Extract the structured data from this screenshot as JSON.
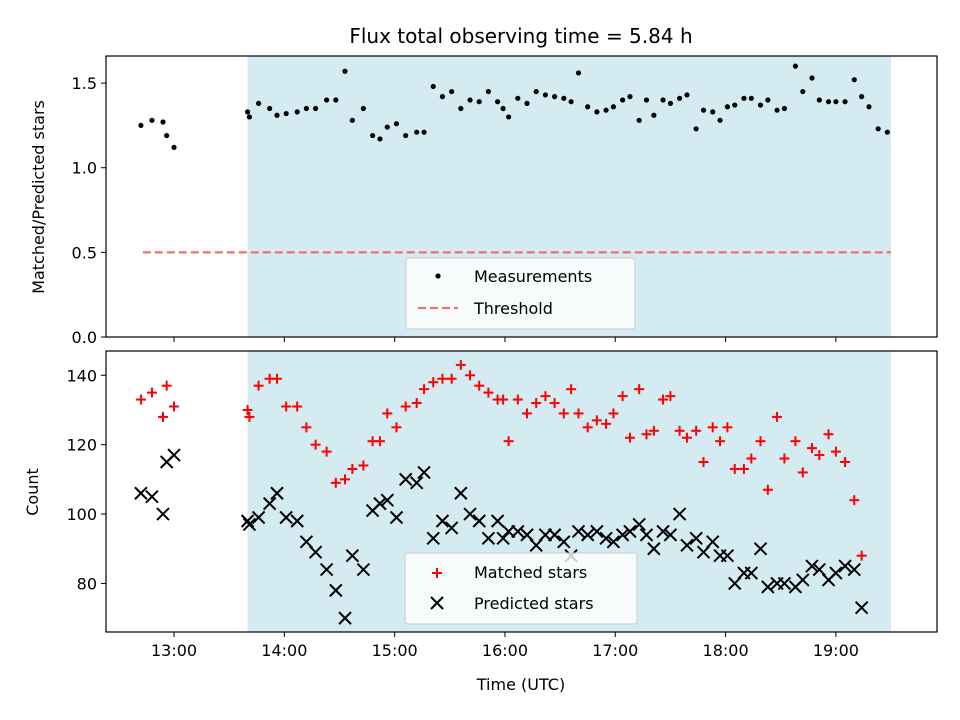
{
  "chart_data": [
    {
      "type": "scatter",
      "title": "Flux total observing time = 5.84 h",
      "ylabel": "Matched/Predicted stars",
      "xlabel": "",
      "xlim": [
        "12:23",
        "19:55"
      ],
      "ylim": [
        0,
        1.66
      ],
      "yticks": [
        0.0,
        0.5,
        1.0,
        1.5
      ],
      "ytick_labels": [
        "0.0",
        "0.5",
        "1.0",
        "1.5"
      ],
      "grid": false,
      "legend_position": "bottom-center",
      "shaded_region": {
        "from": "13:40",
        "to": "19:30",
        "color": "#d4ebf1"
      },
      "threshold": {
        "name": "Threshold",
        "value": 0.5,
        "from": "12:43",
        "to": "19:30",
        "color": "#f07070",
        "style": "dashed"
      },
      "series": [
        {
          "name": "Measurements",
          "marker": "dot",
          "color": "#000000",
          "points": [
            [
              "12:42",
              1.25
            ],
            [
              "12:48",
              1.28
            ],
            [
              "12:54",
              1.27
            ],
            [
              "12:56",
              1.19
            ],
            [
              "13:00",
              1.12
            ],
            [
              "13:40",
              1.33
            ],
            [
              "13:41",
              1.3
            ],
            [
              "13:46",
              1.38
            ],
            [
              "13:52",
              1.35
            ],
            [
              "13:56",
              1.31
            ],
            [
              "14:01",
              1.32
            ],
            [
              "14:07",
              1.33
            ],
            [
              "14:12",
              1.35
            ],
            [
              "14:17",
              1.35
            ],
            [
              "14:23",
              1.4
            ],
            [
              "14:28",
              1.4
            ],
            [
              "14:33",
              1.57
            ],
            [
              "14:37",
              1.28
            ],
            [
              "14:43",
              1.35
            ],
            [
              "14:48",
              1.19
            ],
            [
              "14:52",
              1.17
            ],
            [
              "14:56",
              1.24
            ],
            [
              "15:01",
              1.26
            ],
            [
              "15:06",
              1.19
            ],
            [
              "15:12",
              1.21
            ],
            [
              "15:16",
              1.21
            ],
            [
              "15:21",
              1.48
            ],
            [
              "15:26",
              1.42
            ],
            [
              "15:31",
              1.45
            ],
            [
              "15:36",
              1.35
            ],
            [
              "15:41",
              1.4
            ],
            [
              "15:46",
              1.39
            ],
            [
              "15:51",
              1.45
            ],
            [
              "15:56",
              1.39
            ],
            [
              "15:59",
              1.35
            ],
            [
              "16:02",
              1.3
            ],
            [
              "16:07",
              1.41
            ],
            [
              "16:12",
              1.38
            ],
            [
              "16:17",
              1.45
            ],
            [
              "16:22",
              1.43
            ],
            [
              "16:27",
              1.42
            ],
            [
              "16:32",
              1.41
            ],
            [
              "16:36",
              1.39
            ],
            [
              "16:40",
              1.56
            ],
            [
              "16:45",
              1.36
            ],
            [
              "16:50",
              1.33
            ],
            [
              "16:55",
              1.34
            ],
            [
              "16:59",
              1.36
            ],
            [
              "17:04",
              1.4
            ],
            [
              "17:08",
              1.42
            ],
            [
              "17:13",
              1.28
            ],
            [
              "17:17",
              1.4
            ],
            [
              "17:21",
              1.31
            ],
            [
              "17:26",
              1.4
            ],
            [
              "17:30",
              1.38
            ],
            [
              "17:35",
              1.41
            ],
            [
              "17:39",
              1.43
            ],
            [
              "17:44",
              1.23
            ],
            [
              "17:48",
              1.34
            ],
            [
              "17:53",
              1.33
            ],
            [
              "17:57",
              1.28
            ],
            [
              "18:01",
              1.36
            ],
            [
              "18:05",
              1.37
            ],
            [
              "18:10",
              1.41
            ],
            [
              "18:14",
              1.41
            ],
            [
              "18:19",
              1.37
            ],
            [
              "18:23",
              1.4
            ],
            [
              "18:28",
              1.34
            ],
            [
              "18:32",
              1.35
            ],
            [
              "18:38",
              1.6
            ],
            [
              "18:42",
              1.45
            ],
            [
              "18:47",
              1.53
            ],
            [
              "18:51",
              1.4
            ],
            [
              "18:56",
              1.39
            ],
            [
              "19:00",
              1.39
            ],
            [
              "19:05",
              1.39
            ],
            [
              "19:10",
              1.52
            ],
            [
              "19:14",
              1.42
            ],
            [
              "19:18",
              1.36
            ],
            [
              "19:23",
              1.23
            ],
            [
              "19:28",
              1.21
            ]
          ]
        }
      ]
    },
    {
      "type": "scatter",
      "title": "",
      "ylabel": "Count",
      "xlabel": "Time (UTC)",
      "xlim": [
        "12:23",
        "19:55"
      ],
      "ylim": [
        66,
        147
      ],
      "yticks": [
        80,
        100,
        120,
        140
      ],
      "ytick_labels": [
        "80",
        "100",
        "120",
        "140"
      ],
      "xticks": [
        "13:00",
        "14:00",
        "15:00",
        "16:00",
        "17:00",
        "18:00",
        "19:00"
      ],
      "xtick_labels": [
        "13:00",
        "14:00",
        "15:00",
        "16:00",
        "17:00",
        "18:00",
        "19:00"
      ],
      "grid": false,
      "legend_position": "bottom-center",
      "shaded_region": {
        "from": "13:40",
        "to": "19:30",
        "color": "#d4ebf1"
      },
      "series": [
        {
          "name": "Matched stars",
          "marker": "plus",
          "color": "#ff0000",
          "points": [
            [
              "12:42",
              133
            ],
            [
              "12:48",
              135
            ],
            [
              "12:54",
              128
            ],
            [
              "12:56",
              137
            ],
            [
              "13:00",
              131
            ],
            [
              "13:40",
              130
            ],
            [
              "13:41",
              128
            ],
            [
              "13:46",
              137
            ],
            [
              "13:52",
              139
            ],
            [
              "13:56",
              139
            ],
            [
              "14:01",
              131
            ],
            [
              "14:07",
              131
            ],
            [
              "14:12",
              125
            ],
            [
              "14:17",
              120
            ],
            [
              "14:23",
              118
            ],
            [
              "14:28",
              109
            ],
            [
              "14:33",
              110
            ],
            [
              "14:37",
              113
            ],
            [
              "14:43",
              114
            ],
            [
              "14:48",
              121
            ],
            [
              "14:52",
              121
            ],
            [
              "14:56",
              129
            ],
            [
              "15:01",
              125
            ],
            [
              "15:06",
              131
            ],
            [
              "15:12",
              132
            ],
            [
              "15:16",
              136
            ],
            [
              "15:21",
              138
            ],
            [
              "15:26",
              139
            ],
            [
              "15:31",
              139
            ],
            [
              "15:36",
              143
            ],
            [
              "15:41",
              140
            ],
            [
              "15:46",
              137
            ],
            [
              "15:51",
              135
            ],
            [
              "15:56",
              133
            ],
            [
              "15:59",
              133
            ],
            [
              "16:02",
              121
            ],
            [
              "16:07",
              133
            ],
            [
              "16:12",
              129
            ],
            [
              "16:17",
              132
            ],
            [
              "16:22",
              134
            ],
            [
              "16:27",
              132
            ],
            [
              "16:32",
              129
            ],
            [
              "16:36",
              136
            ],
            [
              "16:40",
              129
            ],
            [
              "16:45",
              125
            ],
            [
              "16:50",
              127
            ],
            [
              "16:55",
              126
            ],
            [
              "16:59",
              129
            ],
            [
              "17:04",
              134
            ],
            [
              "17:08",
              122
            ],
            [
              "17:13",
              136
            ],
            [
              "17:17",
              123
            ],
            [
              "17:21",
              124
            ],
            [
              "17:26",
              133
            ],
            [
              "17:30",
              134
            ],
            [
              "17:35",
              124
            ],
            [
              "17:39",
              122
            ],
            [
              "17:44",
              124
            ],
            [
              "17:48",
              115
            ],
            [
              "17:53",
              125
            ],
            [
              "17:57",
              121
            ],
            [
              "18:01",
              125
            ],
            [
              "18:05",
              113
            ],
            [
              "18:10",
              113
            ],
            [
              "18:14",
              116
            ],
            [
              "18:19",
              121
            ],
            [
              "18:23",
              107
            ],
            [
              "18:28",
              128
            ],
            [
              "18:32",
              116
            ],
            [
              "18:38",
              121
            ],
            [
              "18:42",
              112
            ],
            [
              "18:47",
              119
            ],
            [
              "18:51",
              117
            ],
            [
              "18:56",
              123
            ],
            [
              "19:00",
              118
            ],
            [
              "19:05",
              115
            ],
            [
              "19:10",
              104
            ],
            [
              "19:14",
              88
            ]
          ]
        },
        {
          "name": "Predicted stars",
          "marker": "x",
          "color": "#000000",
          "points": [
            [
              "12:42",
              106
            ],
            [
              "12:48",
              105
            ],
            [
              "12:54",
              100
            ],
            [
              "12:56",
              115
            ],
            [
              "13:00",
              117
            ],
            [
              "13:40",
              98
            ],
            [
              "13:41",
              97
            ],
            [
              "13:46",
              99
            ],
            [
              "13:52",
              103
            ],
            [
              "13:56",
              106
            ],
            [
              "14:01",
              99
            ],
            [
              "14:07",
              98
            ],
            [
              "14:12",
              92
            ],
            [
              "14:17",
              89
            ],
            [
              "14:23",
              84
            ],
            [
              "14:28",
              78
            ],
            [
              "14:33",
              70
            ],
            [
              "14:37",
              88
            ],
            [
              "14:43",
              84
            ],
            [
              "14:48",
              101
            ],
            [
              "14:52",
              103
            ],
            [
              "14:56",
              104
            ],
            [
              "15:01",
              99
            ],
            [
              "15:06",
              110
            ],
            [
              "15:12",
              109
            ],
            [
              "15:16",
              112
            ],
            [
              "15:21",
              93
            ],
            [
              "15:26",
              98
            ],
            [
              "15:31",
              96
            ],
            [
              "15:36",
              106
            ],
            [
              "15:41",
              100
            ],
            [
              "15:46",
              98
            ],
            [
              "15:51",
              93
            ],
            [
              "15:56",
              98
            ],
            [
              "15:59",
              93
            ],
            [
              "16:02",
              95
            ],
            [
              "16:07",
              95
            ],
            [
              "16:12",
              94
            ],
            [
              "16:17",
              91
            ],
            [
              "16:22",
              94
            ],
            [
              "16:27",
              94
            ],
            [
              "16:32",
              92
            ],
            [
              "16:36",
              88
            ],
            [
              "16:40",
              95
            ],
            [
              "16:45",
              94
            ],
            [
              "16:50",
              95
            ],
            [
              "16:55",
              93
            ],
            [
              "16:59",
              92
            ],
            [
              "17:04",
              94
            ],
            [
              "17:08",
              95
            ],
            [
              "17:13",
              97
            ],
            [
              "17:17",
              94
            ],
            [
              "17:21",
              90
            ],
            [
              "17:26",
              95
            ],
            [
              "17:30",
              94
            ],
            [
              "17:35",
              100
            ],
            [
              "17:39",
              91
            ],
            [
              "17:44",
              93
            ],
            [
              "17:48",
              89
            ],
            [
              "17:53",
              92
            ],
            [
              "17:57",
              88
            ],
            [
              "18:01",
              88
            ],
            [
              "18:05",
              80
            ],
            [
              "18:10",
              83
            ],
            [
              "18:14",
              83
            ],
            [
              "18:19",
              90
            ],
            [
              "18:23",
              79
            ],
            [
              "18:28",
              80
            ],
            [
              "18:32",
              80
            ],
            [
              "18:38",
              79
            ],
            [
              "18:42",
              81
            ],
            [
              "18:47",
              85
            ],
            [
              "18:51",
              84
            ],
            [
              "18:56",
              81
            ],
            [
              "19:00",
              83
            ],
            [
              "19:05",
              85
            ],
            [
              "19:10",
              84
            ],
            [
              "19:14",
              73
            ]
          ]
        }
      ]
    }
  ]
}
